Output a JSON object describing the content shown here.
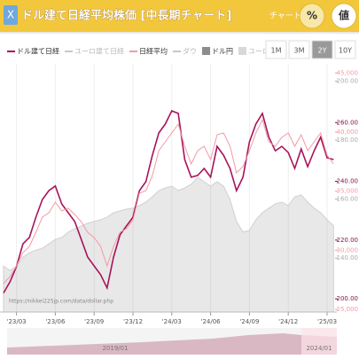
{
  "header": {
    "title": "ドル建て日経平均株価 [中長期チャート]",
    "chart_label": "チャート:",
    "modes": [
      "%",
      "値"
    ],
    "selected_mode": "値"
  },
  "ranges": [
    "1M",
    "3M",
    "2Y",
    "10Y"
  ],
  "selected_range": "2Y",
  "source": "https://nikkei225jp.com/data/dollar.php",
  "navigator_labels": [
    "2019/01",
    "2024/01"
  ],
  "chart_data": {
    "type": "line",
    "categories": [
      null,
      null,
      "'23/03",
      null,
      null,
      null,
      null,
      null,
      "'23/06",
      null,
      null,
      null,
      null,
      null,
      "'23/09",
      null,
      null,
      null,
      null,
      null,
      "'23/12",
      null,
      null,
      null,
      null,
      null,
      "'24/03",
      null,
      null,
      null,
      null,
      null,
      "'24/06",
      null,
      null,
      null,
      null,
      null,
      "'24/09",
      null,
      null,
      null,
      null,
      null,
      "'24/12",
      null,
      null,
      null,
      null,
      null,
      "'25/03",
      null
    ],
    "series": [
      {
        "name": "ドル建て日経",
        "color": "#a8145a",
        "axis": "y",
        "style": "line",
        "visible": true,
        "values": [
          202,
          205.8,
          211,
          218.7,
          220.9,
          227.8,
          233.8,
          236.8,
          238.4,
          232.3,
          229.3,
          226.3,
          220.3,
          214.2,
          211.2,
          208.2,
          203.7,
          214.2,
          221.8,
          224.8,
          227.8,
          236.8,
          239.9,
          248.9,
          256.5,
          259.5,
          264,
          263.1,
          247.4,
          241.4,
          242,
          244.4,
          241.4,
          251.9,
          248.9,
          244.4,
          236.8,
          241.4,
          253.4,
          259.5,
          263.1,
          255,
          250.4,
          251.9,
          249.8,
          244.4,
          251,
          245,
          250.4,
          255,
          248,
          247.4
        ]
      },
      {
        "name": "ユーロ建て日経",
        "color": "#c8c8c8",
        "style": "line",
        "visible": false
      },
      {
        "name": "日経平均",
        "color": "#f29aa6",
        "axis": "y2",
        "style": "line",
        "visible": true,
        "values": [
          27175,
          27775,
          28675,
          29800,
          30325,
          31525,
          32800,
          33175,
          34075,
          33325,
          33550,
          33025,
          32425,
          31525,
          31075,
          30325,
          28675,
          30325,
          31525,
          31825,
          32575,
          34825,
          35050,
          36325,
          38425,
          39175,
          39925,
          40675,
          38800,
          37300,
          38425,
          38800,
          37675,
          39775,
          39925,
          38800,
          36550,
          37075,
          38425,
          39925,
          41050,
          39175,
          38800,
          39550,
          39925,
          38800,
          39775,
          38425,
          39175,
          39925,
          38050,
          37300
        ]
      },
      {
        "name": "ダウ",
        "color": "#c8c8c8",
        "style": "line",
        "visible": false
      },
      {
        "name": "ドル円",
        "color": "#8c8c8c",
        "axis": "y3",
        "style": "area",
        "visible": true,
        "values": [
          137.3,
          135.8,
          137.3,
          140.3,
          141.8,
          142.7,
          143.3,
          144.8,
          146.4,
          147,
          148.8,
          150,
          150.9,
          151.8,
          152.4,
          153,
          153.9,
          155.4,
          156,
          156.6,
          156.9,
          157.8,
          159,
          160.8,
          162.9,
          163.8,
          164.4,
          162.9,
          163.8,
          165,
          167.4,
          165.9,
          164.4,
          165.9,
          164.4,
          159.9,
          152.4,
          148.8,
          149.4,
          153,
          155.4,
          156.9,
          158.4,
          159,
          157.8,
          160.8,
          161.4,
          159,
          156.9,
          155.4,
          153,
          150.9
        ]
      },
      {
        "name": "ユーロ円",
        "color": "#d8d8d8",
        "style": "area",
        "visible": false
      }
    ],
    "ylim": [
      195.5,
      280
    ],
    "yticks": [
      {
        "value": 260,
        "label": "260.00"
      },
      {
        "value": 240,
        "label": "240.00"
      },
      {
        "value": 220,
        "label": "220.00"
      },
      {
        "value": 200,
        "label": "200.00"
      }
    ],
    "y2lim": [
      24775,
      45775
    ],
    "y2ticks": [
      {
        "value": 45000,
        "label": "45,000"
      },
      {
        "value": 40000,
        "label": "40,000"
      },
      {
        "value": 35000,
        "label": "35,000"
      },
      {
        "value": 30000,
        "label": "30,000"
      },
      {
        "value": 25000,
        "label": "25,000"
      }
    ],
    "y3lim": [
      121.7,
      205.9
    ],
    "y3ticks": [
      {
        "value": 200,
        "label": "200.00"
      },
      {
        "value": 180,
        "label": "180.00"
      },
      {
        "value": 160,
        "label": "160.00"
      },
      {
        "value": 140,
        "label": "140.00"
      }
    ]
  }
}
